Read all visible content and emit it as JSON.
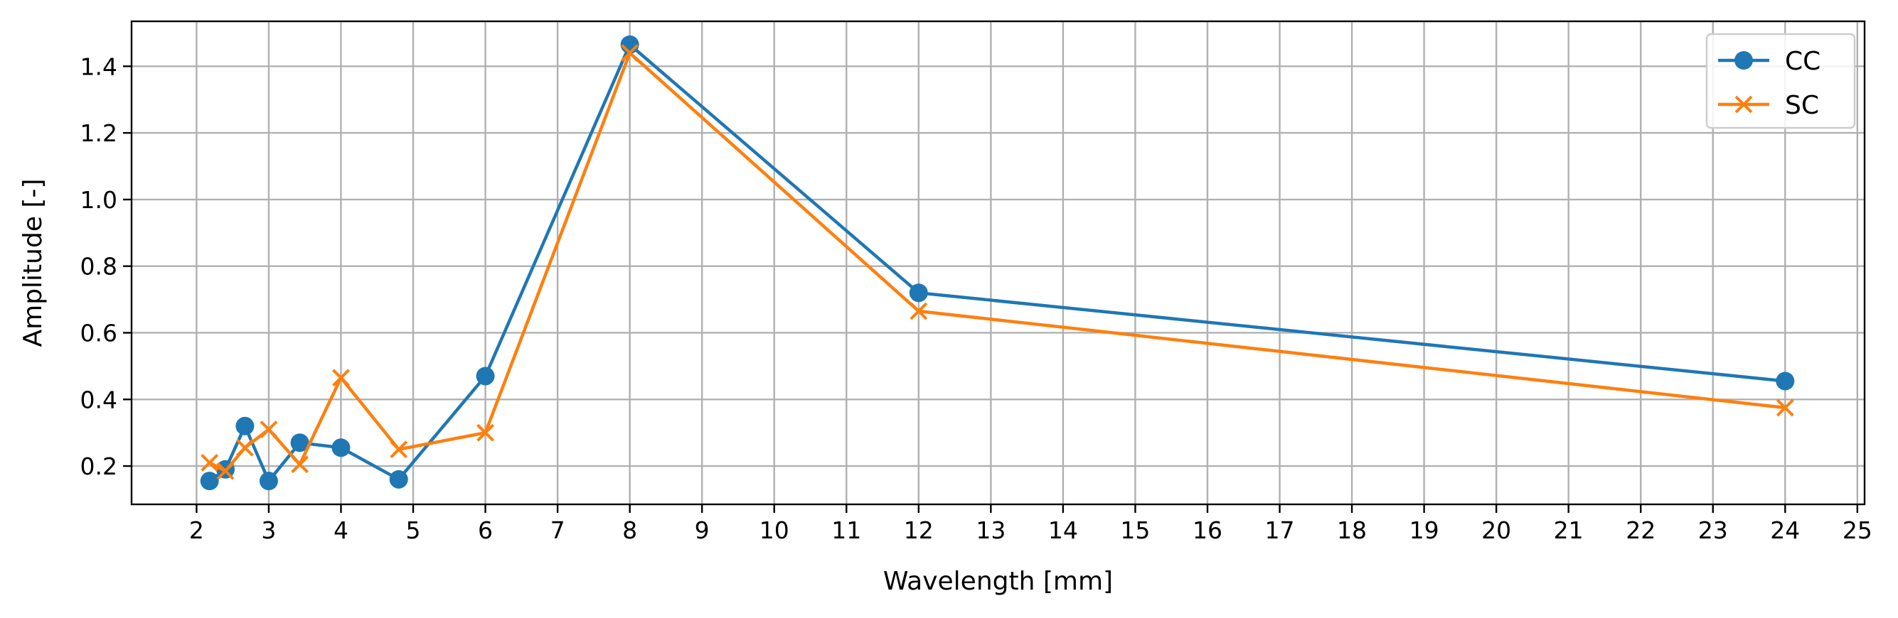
{
  "chart_data": {
    "type": "line",
    "title": "",
    "xlabel": "Wavelength [mm]",
    "ylabel": "Amplitude [-]",
    "xlim": [
      1.1,
      25.1
    ],
    "ylim": [
      0.085,
      1.535
    ],
    "xticks": [
      2,
      3,
      4,
      5,
      6,
      7,
      8,
      9,
      10,
      11,
      12,
      13,
      14,
      15,
      16,
      17,
      18,
      19,
      20,
      21,
      22,
      23,
      24,
      25
    ],
    "yticks": [
      0.2,
      0.4,
      0.6,
      0.8,
      1.0,
      1.2,
      1.4
    ],
    "ytick_labels": [
      "0.2",
      "0.4",
      "0.6",
      "0.8",
      "1.0",
      "1.2",
      "1.4"
    ],
    "grid": true,
    "legend_position": "top-right",
    "series": [
      {
        "name": "CC",
        "color": "#1f77b4",
        "marker": "circle",
        "x": [
          2.18,
          2.4,
          2.67,
          3.0,
          3.43,
          4.0,
          4.8,
          6.0,
          8.0,
          12.0,
          24.0
        ],
        "y": [
          0.155,
          0.19,
          0.32,
          0.155,
          0.27,
          0.255,
          0.16,
          0.47,
          1.465,
          0.72,
          0.455
        ]
      },
      {
        "name": "SC",
        "color": "#ff7f0e",
        "marker": "x",
        "x": [
          2.18,
          2.4,
          2.67,
          3.0,
          3.43,
          4.0,
          4.8,
          6.0,
          8.0,
          12.0,
          24.0
        ],
        "y": [
          0.21,
          0.185,
          0.255,
          0.31,
          0.205,
          0.465,
          0.25,
          0.3,
          1.44,
          0.665,
          0.375
        ]
      }
    ]
  }
}
